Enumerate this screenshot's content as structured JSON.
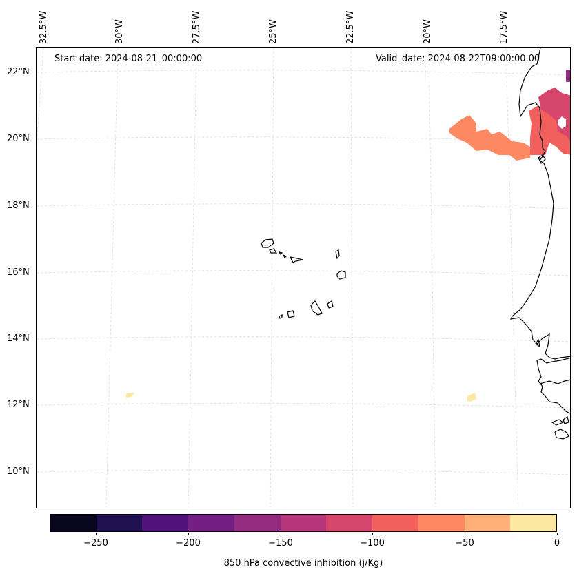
{
  "map": {
    "title_left": "Start date: 2024-08-21_00:00:00",
    "title_right": "Valid_date: 2024-08-22T09:00:00.00",
    "lon_labels": [
      "32.5°W",
      "30°W",
      "27.5°W",
      "25°W",
      "22.5°W",
      "20°W",
      "17.5°W"
    ],
    "lat_labels": [
      "22°N",
      "20°N",
      "18°N",
      "16°N",
      "14°N",
      "12°N",
      "10°N"
    ]
  },
  "colorbar": {
    "title": "850 hPa convective inhibition (j/Kg)",
    "tick_labels": [
      "−250",
      "−200",
      "−150",
      "−100",
      "−50",
      "0"
    ],
    "colors": [
      "#07061c",
      "#221150",
      "#4f127b",
      "#721f81",
      "#932b80",
      "#b5367a",
      "#d6456c",
      "#f1605d",
      "#fc8961",
      "#feb078",
      "#fde7a1"
    ]
  }
}
